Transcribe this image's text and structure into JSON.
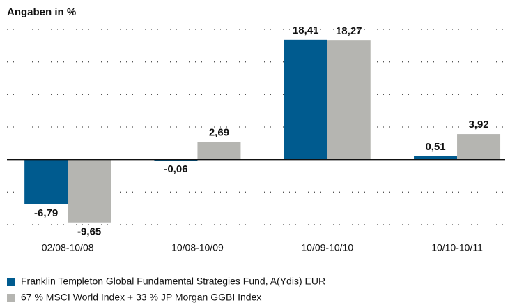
{
  "chart_data": {
    "type": "bar",
    "title": "Angaben in %",
    "categories": [
      "02/08-10/08",
      "10/08-10/09",
      "10/09-10/10",
      "10/10-10/11"
    ],
    "series": [
      {
        "name": "Franklin Templeton Global Fundamental Strategies Fund, A(Ydis) EUR",
        "color": "#005b8f",
        "values": [
          -6.79,
          -0.06,
          18.41,
          0.51
        ],
        "value_labels": [
          "-6,79",
          "-0,06",
          "18,41",
          "0,51"
        ]
      },
      {
        "name": "67 % MSCI World Index + 33 % JP Morgan GGBI Index",
        "color": "#b5b5b1",
        "values": [
          -9.65,
          2.69,
          18.27,
          3.92
        ],
        "value_labels": [
          "-9,65",
          "2,69",
          "18,27",
          "3,92"
        ]
      }
    ],
    "ylim": [
      -10,
      20
    ],
    "yticks": [
      -10,
      -5,
      0,
      5,
      10,
      15,
      20
    ],
    "grid": true
  }
}
